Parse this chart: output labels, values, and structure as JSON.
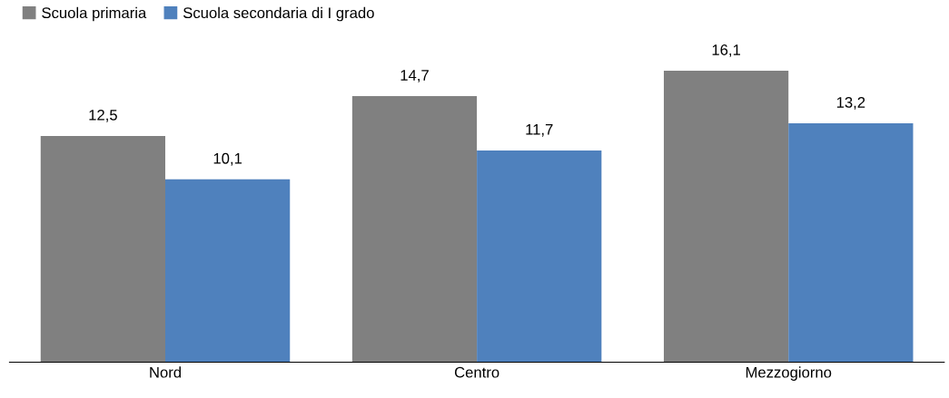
{
  "chart_data": {
    "type": "bar",
    "categories": [
      "Nord",
      "Centro",
      "Mezzogiorno"
    ],
    "series": [
      {
        "name": "Scuola primaria",
        "color": "#808080",
        "values": [
          12.5,
          14.7,
          16.1
        ],
        "value_labels": [
          "12,5",
          "14,7",
          "16,1"
        ]
      },
      {
        "name": "Scuola secondaria di I grado",
        "color": "#4f81bd",
        "values": [
          10.1,
          11.7,
          13.2
        ],
        "value_labels": [
          "10,1",
          "11,7",
          "13,2"
        ]
      }
    ],
    "tick_labels": "x",
    "grid": false,
    "legend": "top left"
  }
}
